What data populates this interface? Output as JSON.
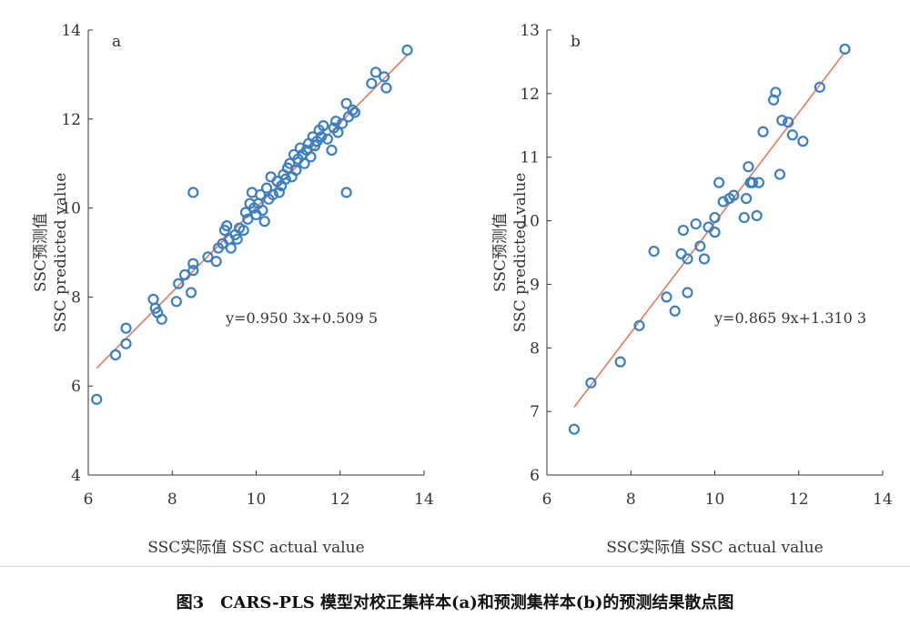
{
  "chart_data": [
    {
      "type": "scatter",
      "panel_label": "a",
      "xlabel": "SSC实际值 SSC actual value",
      "ylabel_cn": "SSC预测值",
      "ylabel_en": "SSC predicted value",
      "xlim": [
        6,
        14
      ],
      "ylim": [
        4,
        14
      ],
      "xticks": [
        "6",
        "8",
        "10",
        "12",
        "14"
      ],
      "yticks": [
        "4",
        "6",
        "8",
        "10",
        "12",
        "14"
      ],
      "equation": "y=0.950 3x+0.509 5",
      "fit": {
        "slope": 0.9503,
        "intercept": 0.5095,
        "x_range": [
          6.2,
          13.6
        ]
      },
      "marker_color": "#3a7fc1",
      "line_color": "#e07a5a",
      "points": [
        [
          6.2,
          5.7
        ],
        [
          6.65,
          6.7
        ],
        [
          6.9,
          6.95
        ],
        [
          6.9,
          7.3
        ],
        [
          7.55,
          7.95
        ],
        [
          7.6,
          7.75
        ],
        [
          7.65,
          7.65
        ],
        [
          7.75,
          7.5
        ],
        [
          8.1,
          7.9
        ],
        [
          8.15,
          8.3
        ],
        [
          8.3,
          8.5
        ],
        [
          8.45,
          8.1
        ],
        [
          8.5,
          8.6
        ],
        [
          8.5,
          8.75
        ],
        [
          8.5,
          10.35
        ],
        [
          8.85,
          8.9
        ],
        [
          9.05,
          8.8
        ],
        [
          9.1,
          9.1
        ],
        [
          9.2,
          9.2
        ],
        [
          9.25,
          9.5
        ],
        [
          9.3,
          9.6
        ],
        [
          9.35,
          9.3
        ],
        [
          9.4,
          9.1
        ],
        [
          9.5,
          9.4
        ],
        [
          9.55,
          9.3
        ],
        [
          9.6,
          9.55
        ],
        [
          9.7,
          9.5
        ],
        [
          9.75,
          9.9
        ],
        [
          9.8,
          9.75
        ],
        [
          9.85,
          10.1
        ],
        [
          9.9,
          10.35
        ],
        [
          9.95,
          10.0
        ],
        [
          10.0,
          9.85
        ],
        [
          10.05,
          10.1
        ],
        [
          10.1,
          10.3
        ],
        [
          10.15,
          9.95
        ],
        [
          10.2,
          9.7
        ],
        [
          10.25,
          10.45
        ],
        [
          10.3,
          10.2
        ],
        [
          10.35,
          10.7
        ],
        [
          10.4,
          10.3
        ],
        [
          10.5,
          10.6
        ],
        [
          10.55,
          10.35
        ],
        [
          10.6,
          10.5
        ],
        [
          10.65,
          10.75
        ],
        [
          10.7,
          10.65
        ],
        [
          10.75,
          10.9
        ],
        [
          10.8,
          11.0
        ],
        [
          10.85,
          10.7
        ],
        [
          10.9,
          11.2
        ],
        [
          10.95,
          10.85
        ],
        [
          11.0,
          11.1
        ],
        [
          11.05,
          11.35
        ],
        [
          11.1,
          11.2
        ],
        [
          11.15,
          11.0
        ],
        [
          11.2,
          11.3
        ],
        [
          11.25,
          11.45
        ],
        [
          11.3,
          11.15
        ],
        [
          11.35,
          11.6
        ],
        [
          11.4,
          11.4
        ],
        [
          11.45,
          11.5
        ],
        [
          11.5,
          11.75
        ],
        [
          11.55,
          11.6
        ],
        [
          11.6,
          11.85
        ],
        [
          11.7,
          11.55
        ],
        [
          11.8,
          11.3
        ],
        [
          11.85,
          11.8
        ],
        [
          11.9,
          11.95
        ],
        [
          11.95,
          11.7
        ],
        [
          12.05,
          11.9
        ],
        [
          12.15,
          10.35
        ],
        [
          12.15,
          12.35
        ],
        [
          12.2,
          12.05
        ],
        [
          12.3,
          12.2
        ],
        [
          12.35,
          12.15
        ],
        [
          12.75,
          12.8
        ],
        [
          12.85,
          13.05
        ],
        [
          13.05,
          12.95
        ],
        [
          13.1,
          12.7
        ],
        [
          13.6,
          13.55
        ]
      ]
    },
    {
      "type": "scatter",
      "panel_label": "b",
      "xlabel": "SSC实际值 SSC actual value",
      "ylabel_cn": "SSC预测值",
      "ylabel_en": "SSC predicted value",
      "xlim": [
        6,
        14
      ],
      "ylim": [
        6,
        13
      ],
      "xticks": [
        "6",
        "8",
        "10",
        "12",
        "14"
      ],
      "yticks": [
        "6",
        "7",
        "8",
        "9",
        "10",
        "11",
        "12",
        "13"
      ],
      "equation": "y=0.865 9x+1.310 3",
      "fit": {
        "slope": 0.8659,
        "intercept": 1.3103,
        "x_range": [
          6.65,
          13.1
        ]
      },
      "marker_color": "#3a7fc1",
      "line_color": "#e07a5a",
      "points": [
        [
          6.65,
          6.72
        ],
        [
          7.05,
          7.45
        ],
        [
          7.75,
          7.78
        ],
        [
          8.2,
          8.35
        ],
        [
          8.55,
          9.52
        ],
        [
          8.85,
          8.8
        ],
        [
          9.05,
          8.58
        ],
        [
          9.2,
          9.48
        ],
        [
          9.25,
          9.85
        ],
        [
          9.35,
          8.87
        ],
        [
          9.35,
          9.4
        ],
        [
          9.55,
          9.95
        ],
        [
          9.65,
          9.6
        ],
        [
          9.75,
          9.4
        ],
        [
          9.85,
          9.9
        ],
        [
          10.0,
          9.82
        ],
        [
          10.0,
          10.05
        ],
        [
          10.1,
          10.6
        ],
        [
          10.2,
          10.3
        ],
        [
          10.35,
          10.35
        ],
        [
          10.45,
          10.4
        ],
        [
          10.7,
          10.05
        ],
        [
          10.75,
          10.35
        ],
        [
          10.8,
          10.85
        ],
        [
          10.85,
          10.6
        ],
        [
          10.9,
          10.6
        ],
        [
          11.0,
          10.08
        ],
        [
          11.05,
          10.6
        ],
        [
          11.15,
          11.4
        ],
        [
          11.4,
          11.9
        ],
        [
          11.45,
          12.02
        ],
        [
          11.55,
          10.73
        ],
        [
          11.6,
          11.58
        ],
        [
          11.75,
          11.55
        ],
        [
          11.85,
          11.35
        ],
        [
          12.1,
          11.25
        ],
        [
          12.5,
          12.1
        ],
        [
          13.1,
          12.7
        ]
      ]
    }
  ],
  "caption": "图3　CARS-PLS 模型对校正集样本(a)和预测集样本(b)的预测结果散点图"
}
